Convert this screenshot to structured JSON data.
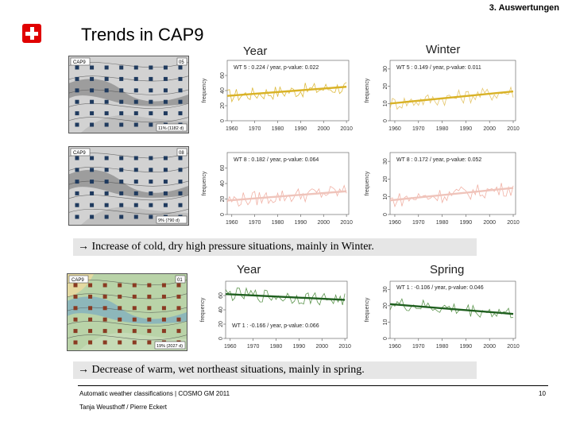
{
  "header": {
    "section": "3. Auswertungen",
    "title": "Trends in CAP9"
  },
  "columns": {
    "year_top": "Year",
    "winter": "Winter",
    "year_bottom": "Year",
    "spring": "Spring"
  },
  "maps": [
    {
      "left_tag": "CAP9",
      "right_tag": "05",
      "caption": "11% (1182 d)",
      "marker": "navy"
    },
    {
      "left_tag": "CAP9",
      "right_tag": "08",
      "caption": "9% (790 d)",
      "marker": "navy"
    },
    {
      "left_tag": "CAP9",
      "right_tag": "01",
      "caption": "19% (2027 d)",
      "marker": "brown"
    }
  ],
  "notes": [
    "→ Increase of cold, dry high pressure situations, mainly in Winter.",
    "→ Decrease of warm, wet northeast situations, mainly in spring."
  ],
  "footer": {
    "left_line1": "Automatic weather classifications | COSMO GM 2011",
    "left_line2": "Tanja Weusthoff / Pierre Eckert",
    "page": "10"
  },
  "chart_data": [
    {
      "type": "line",
      "panel": "WT5 year",
      "annotation": "WT 5 : 0.224 / year, p-value: 0.022",
      "ylabel": "frequency",
      "xlim": [
        1958,
        2011
      ],
      "ylim": [
        0,
        80
      ],
      "xticks": [
        "1960",
        "1970",
        "1980",
        "1990",
        "2000",
        "2010"
      ],
      "yticks": [
        "0",
        "20",
        "40",
        "60"
      ],
      "series": [
        {
          "color": "#d9b226",
          "x": [
            1958,
            2010
          ],
          "values": [
            33,
            45
          ]
        }
      ],
      "trend": {
        "color": "#d9b226",
        "start": 33,
        "end": 45
      }
    },
    {
      "type": "line",
      "panel": "WT5 winter",
      "annotation": "WT 5 : 0.149 / year, p-value: 0.011",
      "ylabel": "frequency",
      "xlim": [
        1958,
        2011
      ],
      "ylim": [
        0,
        35
      ],
      "xticks": [
        "1960",
        "1970",
        "1980",
        "1990",
        "2000",
        "2010"
      ],
      "yticks": [
        "0",
        "10",
        "20",
        "30"
      ],
      "series": [
        {
          "color": "#e2c05a",
          "x": [
            1958,
            2010
          ],
          "values": [
            10,
            17
          ]
        }
      ],
      "trend": {
        "color": "#d9b226",
        "start": 10,
        "end": 17
      }
    },
    {
      "type": "line",
      "panel": "WT8 year",
      "annotation": "WT 8 : 0.182 / year, p-value: 0.064",
      "ylabel": "frequency",
      "xlim": [
        1958,
        2011
      ],
      "ylim": [
        0,
        80
      ],
      "xticks": [
        "1960",
        "1970",
        "1980",
        "1990",
        "2000",
        "2010"
      ],
      "yticks": [
        "0",
        "20",
        "40",
        "60"
      ],
      "series": [
        {
          "color": "#efa99b",
          "x": [
            1958,
            2010
          ],
          "values": [
            18,
            30
          ]
        }
      ],
      "trend": {
        "color": "#efc4bb",
        "start": 18,
        "end": 30
      }
    },
    {
      "type": "line",
      "panel": "WT8 winter",
      "annotation": "WT 8 : 0.172 / year, p-value: 0.052",
      "ylabel": "frequency",
      "xlim": [
        1958,
        2011
      ],
      "ylim": [
        0,
        35
      ],
      "xticks": [
        "1960",
        "1970",
        "1980",
        "1990",
        "2000",
        "2010"
      ],
      "yticks": [
        "0",
        "10",
        "20",
        "30"
      ],
      "series": [
        {
          "color": "#efa99b",
          "x": [
            1958,
            2010
          ],
          "values": [
            8,
            15
          ]
        }
      ],
      "trend": {
        "color": "#efc4bb",
        "start": 8,
        "end": 15
      }
    },
    {
      "type": "line",
      "panel": "WT1 year",
      "annotation": "WT 1 : -0.166 / year, p-value: 0.066",
      "ylabel": "frequency",
      "xlim": [
        1958,
        2011
      ],
      "ylim": [
        0,
        80
      ],
      "xticks": [
        "1960",
        "1970",
        "1980",
        "1990",
        "2000",
        "2010"
      ],
      "yticks": [
        "0",
        "20",
        "40",
        "60"
      ],
      "series": [
        {
          "color": "#4a8a3a",
          "x": [
            1958,
            2010
          ],
          "values": [
            62,
            54
          ]
        }
      ],
      "trend": {
        "color": "#1f5f1f",
        "start": 62,
        "end": 54
      }
    },
    {
      "type": "line",
      "panel": "WT1 spring",
      "annotation": "WT 1 : -0.106 / year, p-value: 0.046",
      "ylabel": "frequency",
      "xlim": [
        1958,
        2011
      ],
      "ylim": [
        0,
        35
      ],
      "xticks": [
        "1960",
        "1970",
        "1980",
        "1990",
        "2000",
        "2010"
      ],
      "yticks": [
        "0",
        "10",
        "20",
        "30"
      ],
      "series": [
        {
          "color": "#4a8a3a",
          "x": [
            1958,
            2010
          ],
          "values": [
            21,
            15
          ]
        }
      ],
      "trend": {
        "color": "#1f5f1f",
        "start": 21,
        "end": 15
      }
    }
  ]
}
